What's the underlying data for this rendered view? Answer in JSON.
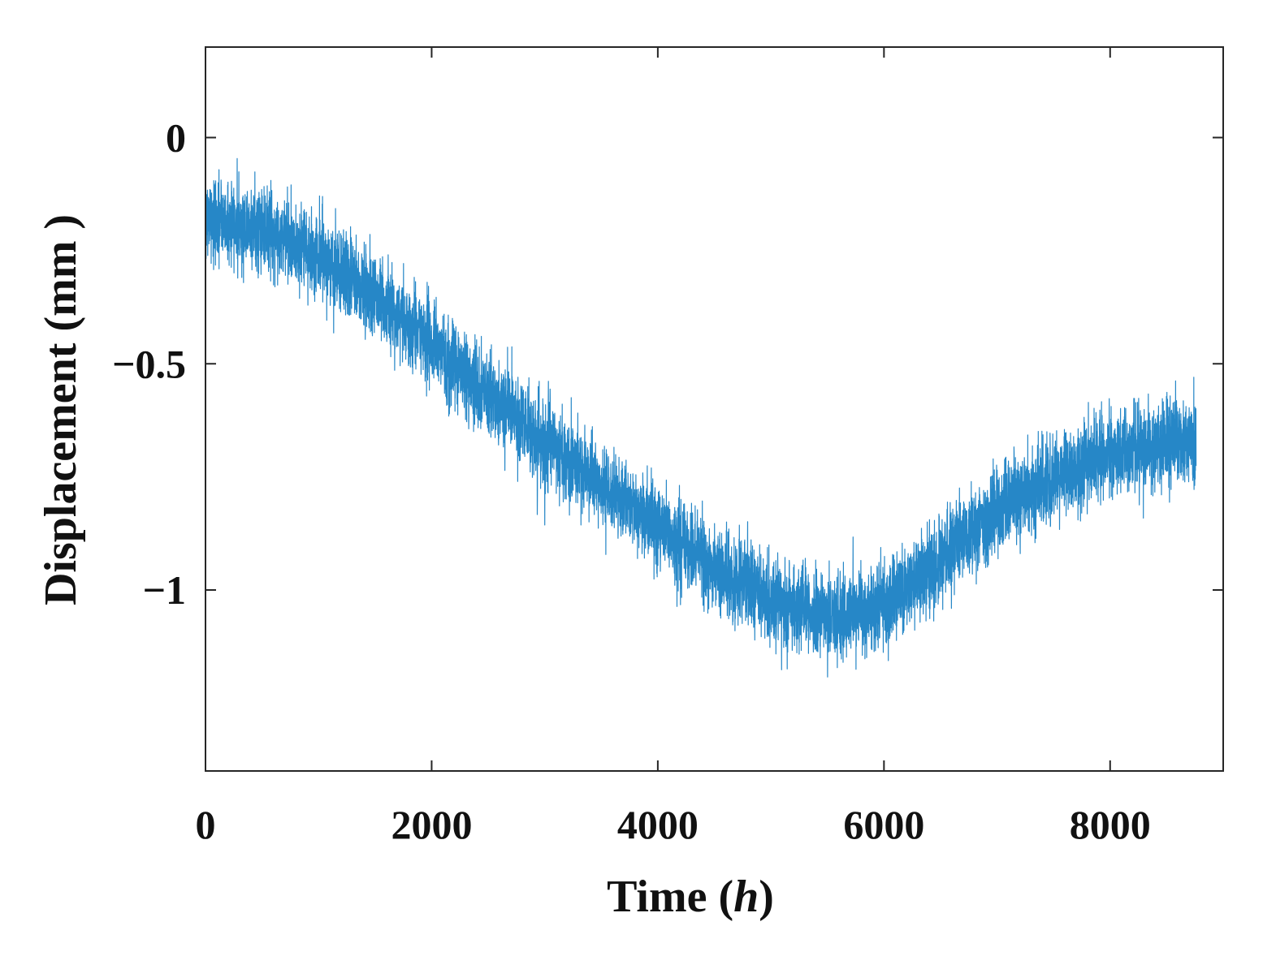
{
  "chart_data": {
    "type": "line",
    "title": "",
    "xlabel_prefix": "Time (",
    "xlabel_var": "h",
    "xlabel_suffix": ")",
    "ylabel": "Displacement (mm )",
    "xlim": [
      0,
      9000
    ],
    "ylim": [
      -1.4,
      0.2
    ],
    "xticks": [
      0,
      2000,
      4000,
      6000,
      8000
    ],
    "xtick_labels": [
      "0",
      "2000",
      "4000",
      "6000",
      "8000"
    ],
    "yticks": [
      0,
      -0.5,
      -1
    ],
    "ytick_labels": [
      "0",
      "−0.5",
      "−1"
    ],
    "grid": false,
    "series": [
      {
        "name": "Displacement",
        "color": "#0072BD",
        "sample_count": 8760,
        "noise_band_mm": 0.09,
        "trend_points": {
          "x": [
            0,
            500,
            1000,
            1500,
            2000,
            2500,
            3000,
            3500,
            4000,
            4500,
            5000,
            5500,
            6000,
            6500,
            7000,
            7500,
            8000,
            8500,
            8760
          ],
          "y": [
            -0.18,
            -0.2,
            -0.26,
            -0.35,
            -0.46,
            -0.57,
            -0.67,
            -0.77,
            -0.86,
            -0.95,
            -1.02,
            -1.06,
            -1.04,
            -0.93,
            -0.82,
            -0.75,
            -0.7,
            -0.68,
            -0.67
          ]
        }
      }
    ]
  }
}
